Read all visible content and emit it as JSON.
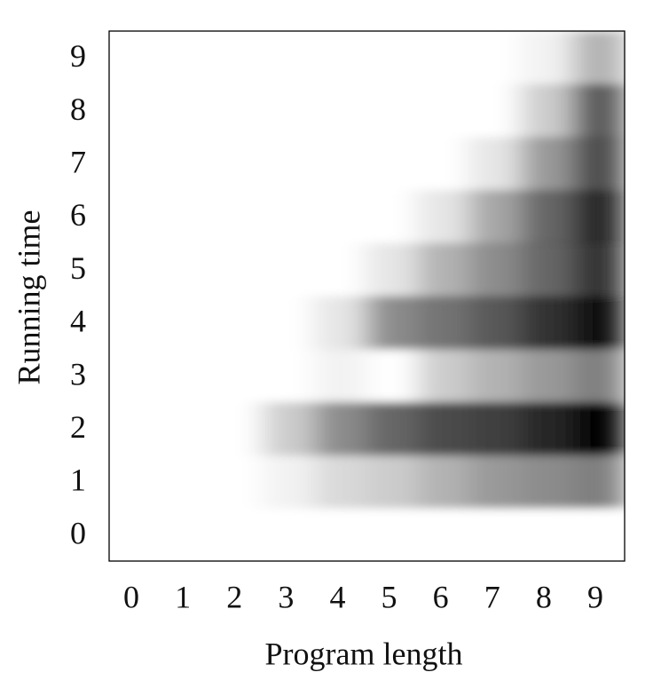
{
  "chart_data": {
    "type": "heatmap",
    "x_label": "Program length",
    "y_label": "Running time",
    "x": [
      "0",
      "1",
      "2",
      "3",
      "4",
      "5",
      "6",
      "7",
      "8",
      "9"
    ],
    "y": [
      "0",
      "1",
      "2",
      "3",
      "4",
      "5",
      "6",
      "7",
      "8",
      "9"
    ],
    "values": [
      [
        0,
        0,
        0,
        0,
        0,
        0,
        0,
        0,
        0,
        0
      ],
      [
        0,
        0,
        0,
        0.05,
        0.15,
        0.2,
        0.3,
        0.4,
        0.45,
        0.5
      ],
      [
        0,
        0,
        0,
        0.2,
        0.45,
        0.6,
        0.7,
        0.75,
        0.85,
        1
      ],
      [
        0,
        0,
        0,
        0,
        0.05,
        0,
        0.2,
        0.3,
        0.4,
        0.5
      ],
      [
        0,
        0,
        0,
        0,
        0.1,
        0.45,
        0.55,
        0.65,
        0.8,
        0.95
      ],
      [
        0,
        0,
        0,
        0,
        0,
        0.1,
        0.3,
        0.45,
        0.6,
        0.8
      ],
      [
        0,
        0,
        0,
        0,
        0,
        0,
        0.1,
        0.35,
        0.6,
        0.85
      ],
      [
        0,
        0,
        0,
        0,
        0,
        0,
        0,
        0.1,
        0.4,
        0.7
      ],
      [
        0,
        0,
        0,
        0,
        0,
        0,
        0,
        0,
        0.2,
        0.65
      ],
      [
        0,
        0,
        0,
        0,
        0,
        0,
        0,
        0,
        0.05,
        0.3
      ]
    ],
    "color": "#000000"
  }
}
